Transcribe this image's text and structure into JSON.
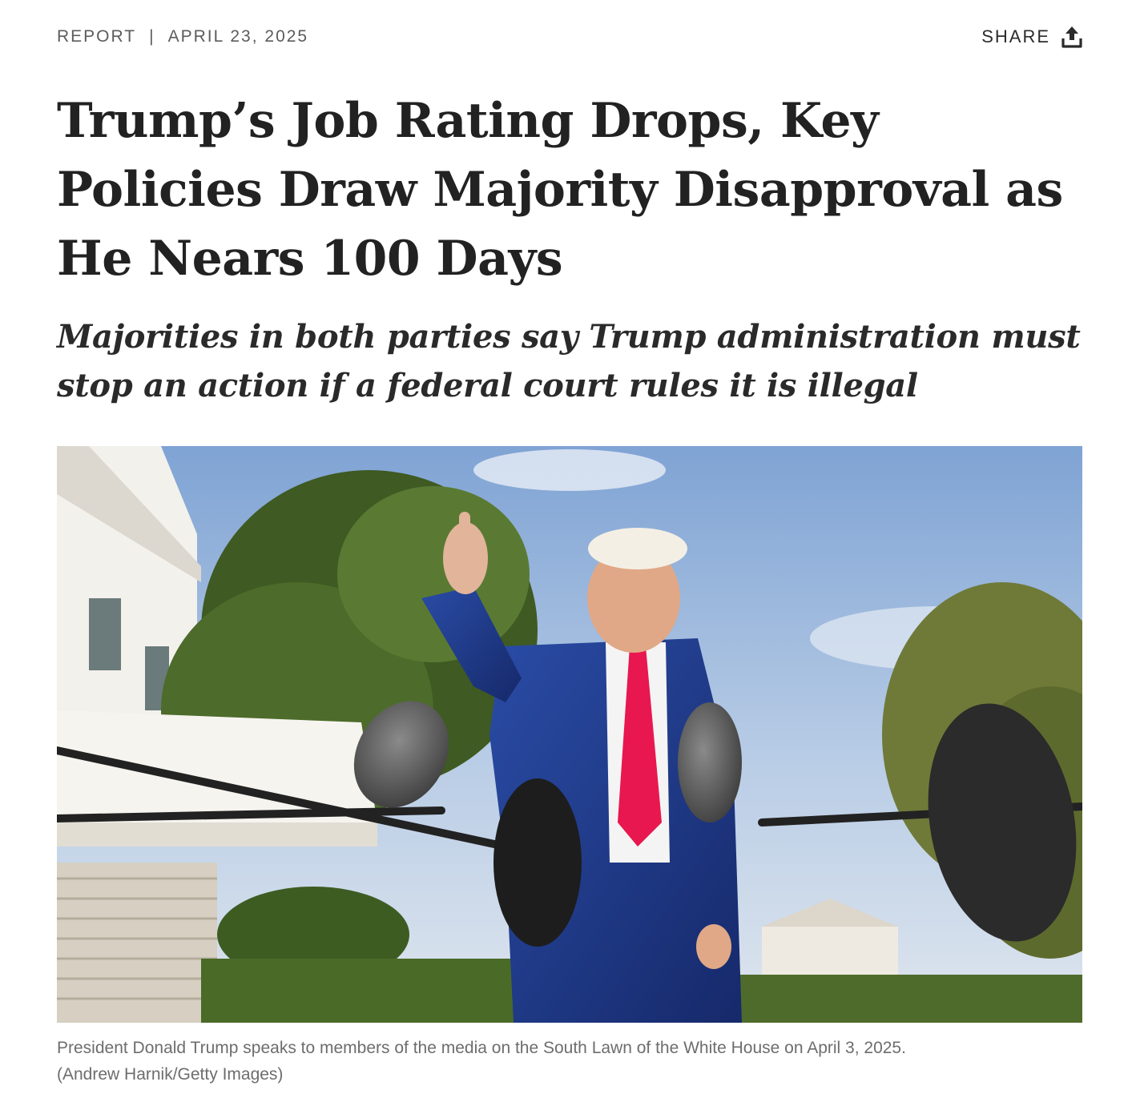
{
  "meta": {
    "section": "REPORT",
    "separator": "|",
    "date": "APRIL 23, 2025",
    "share_label": "SHARE",
    "share_icon": "share-upload-icon"
  },
  "article": {
    "headline": "Trump’s Job Rating Drops, Key Policies Draw Majority Disapproval as He Nears 100 Days",
    "subhead": "Majorities in both parties say Trump administration must stop an action if a federal court rules it is illegal"
  },
  "photo": {
    "alt": "President Donald Trump speaks to members of the media on the South Lawn of the White House",
    "caption": "President Donald Trump speaks to members of the media on the South Lawn of the White House on April 3, 2025.",
    "credit": "(Andrew Harnik/Getty Images)"
  },
  "colors": {
    "sky": "#9dbbe0",
    "suit": "#1f3a8a",
    "tie": "#e8174f",
    "foliage": "#3f5a22"
  }
}
